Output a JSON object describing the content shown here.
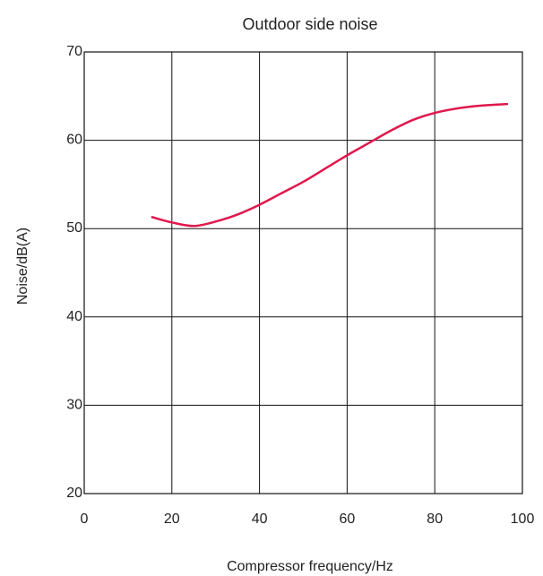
{
  "chart_data": {
    "type": "line",
    "title": "Outdoor side noise",
    "xlabel": "Compressor frequency/Hz",
    "ylabel": "Noise/dB(A)",
    "xlim": [
      0,
      100
    ],
    "ylim": [
      20,
      70
    ],
    "xticks": [
      "0",
      "20",
      "40",
      "60",
      "80",
      "100"
    ],
    "yticks": [
      "20",
      "30",
      "40",
      "50",
      "60",
      "70"
    ],
    "grid": true,
    "legend": "none",
    "series": [
      {
        "color": "#e0184c",
        "x": [
          15.5,
          20,
          25,
          30,
          35,
          40,
          45,
          50,
          55,
          60,
          65,
          70,
          75,
          80,
          85,
          90,
          96.5
        ],
        "y": [
          51.3,
          50.7,
          50.3,
          50.8,
          51.6,
          52.7,
          54.0,
          55.3,
          56.8,
          58.3,
          59.7,
          61.1,
          62.3,
          63.1,
          63.6,
          63.9,
          64.1
        ]
      }
    ]
  }
}
